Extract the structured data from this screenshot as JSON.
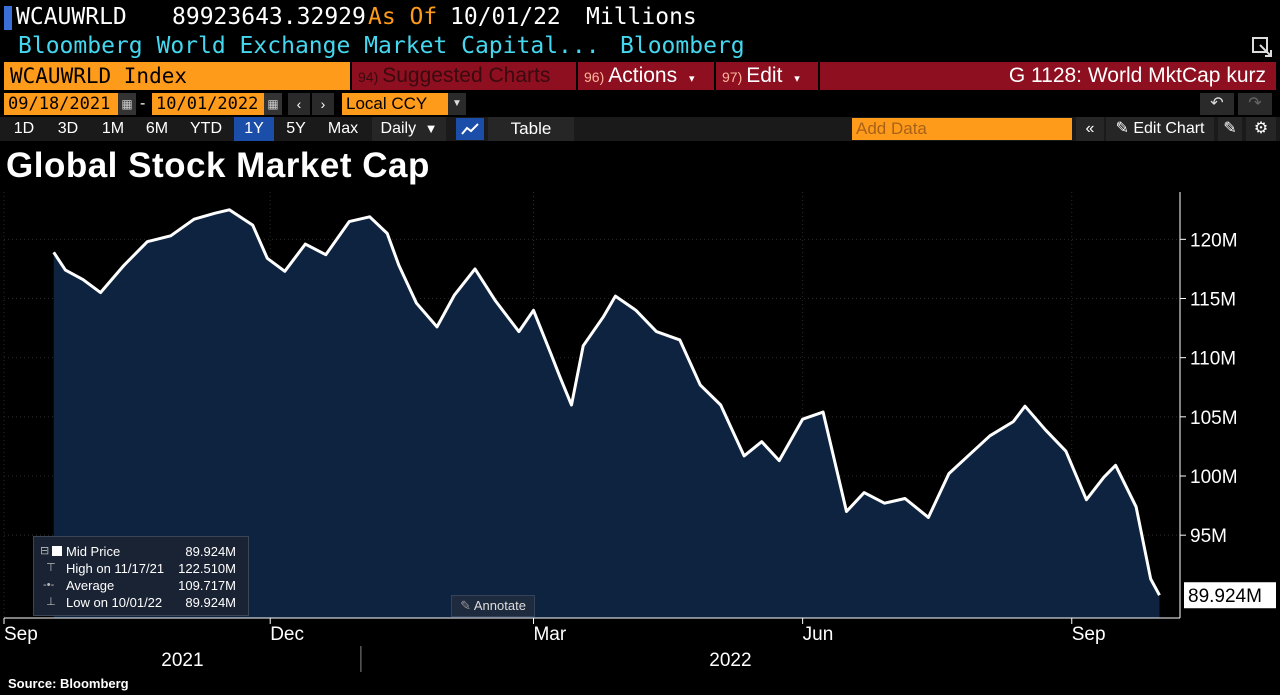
{
  "header": {
    "ticker": "WCAUWRLD",
    "last_value": "89923643.32929",
    "as_of_label": "As Of",
    "as_of_date": "10/01/22",
    "units": "Millions",
    "description": "Bloomberg World Exchange Market Capital...",
    "source": "Bloomberg"
  },
  "toolbar": {
    "index_label": "WCAUWRLD Index",
    "suggested_num": "94)",
    "suggested_label": "Suggested Charts",
    "actions_num": "96)",
    "actions_label": "Actions",
    "edit_num": "97)",
    "edit_label": "Edit",
    "chart_id": "G 1128: World MktCap kurz",
    "start_date": "09/18/2021",
    "end_date": "10/01/2022",
    "date_sep": "-",
    "currency": "Local CCY",
    "periods": [
      "1D",
      "3D",
      "1M",
      "6M",
      "YTD",
      "1Y",
      "5Y",
      "Max"
    ],
    "active_period": "1Y",
    "frequency": "Daily",
    "table_label": "Table",
    "add_data_placeholder": "Add Data",
    "edit_chart_label": "Edit Chart"
  },
  "title": "Global Stock Market Cap",
  "legend": {
    "rows": [
      {
        "label": "Mid Price",
        "value": "89.924M"
      },
      {
        "label": "High on 11/17/21",
        "value": "122.510M"
      },
      {
        "label": "Average",
        "value": "109.717M"
      },
      {
        "label": "Low on 10/01/22",
        "value": "89.924M"
      }
    ]
  },
  "annotate_label": "Annotate",
  "source_label": "Source: Bloomberg",
  "colors": {
    "background": "#000000",
    "area_fill": "#0d2340",
    "line": "#ffffff",
    "bloomberg_orange": "#ff9b1a",
    "bloomberg_red": "#8e0f1f",
    "cyan_text": "#44d7ee",
    "active_blue": "#1b4ea8"
  },
  "chart_data": {
    "type": "area",
    "ylim": [
      88,
      124
    ],
    "y_ticks": [
      95,
      100,
      105,
      110,
      115,
      120
    ],
    "y_tick_labels": [
      "95M",
      "100M",
      "105M",
      "110M",
      "115M",
      "120M"
    ],
    "x_tick_labels": [
      "Sep",
      "Dec",
      "Mar",
      "Jun",
      "Sep"
    ],
    "x_tick_dates": [
      "2021-09-01",
      "2021-12-01",
      "2022-03-01",
      "2022-06-01",
      "2022-09-01"
    ],
    "year_labels": [
      "2021",
      "2022"
    ],
    "last_value_label": "89.924M",
    "x": [
      "2021-09-18",
      "2021-09-22",
      "2021-09-28",
      "2021-10-04",
      "2021-10-12",
      "2021-10-20",
      "2021-10-28",
      "2021-11-05",
      "2021-11-12",
      "2021-11-17",
      "2021-11-25",
      "2021-11-30",
      "2021-12-06",
      "2021-12-13",
      "2021-12-20",
      "2021-12-28",
      "2022-01-04",
      "2022-01-10",
      "2022-01-14",
      "2022-01-20",
      "2022-01-27",
      "2022-02-02",
      "2022-02-09",
      "2022-02-16",
      "2022-02-24",
      "2022-03-01",
      "2022-03-07",
      "2022-03-10",
      "2022-03-14",
      "2022-03-18",
      "2022-03-25",
      "2022-03-29",
      "2022-04-05",
      "2022-04-12",
      "2022-04-20",
      "2022-04-27",
      "2022-05-04",
      "2022-05-12",
      "2022-05-18",
      "2022-05-24",
      "2022-06-01",
      "2022-06-08",
      "2022-06-16",
      "2022-06-22",
      "2022-06-29",
      "2022-07-06",
      "2022-07-14",
      "2022-07-21",
      "2022-07-28",
      "2022-08-04",
      "2022-08-12",
      "2022-08-16",
      "2022-08-23",
      "2022-08-30",
      "2022-09-06",
      "2022-09-12",
      "2022-09-16",
      "2022-09-23",
      "2022-09-28",
      "2022-10-01"
    ],
    "values": [
      118.9,
      117.4,
      116.6,
      115.5,
      117.8,
      119.8,
      120.3,
      121.7,
      122.2,
      122.5,
      121.2,
      118.4,
      117.3,
      119.6,
      118.7,
      121.5,
      121.9,
      120.5,
      117.8,
      114.6,
      112.6,
      115.3,
      117.5,
      114.8,
      112.2,
      114.0,
      110.3,
      108.4,
      106.0,
      111.0,
      113.5,
      115.2,
      114.0,
      112.2,
      111.5,
      107.7,
      106.0,
      101.7,
      102.9,
      101.3,
      104.8,
      105.4,
      97.0,
      98.6,
      97.7,
      98.1,
      96.5,
      100.2,
      101.8,
      103.4,
      104.6,
      105.9,
      103.9,
      102.1,
      98.0,
      99.9,
      100.9,
      97.4,
      91.3,
      89.924
    ]
  }
}
